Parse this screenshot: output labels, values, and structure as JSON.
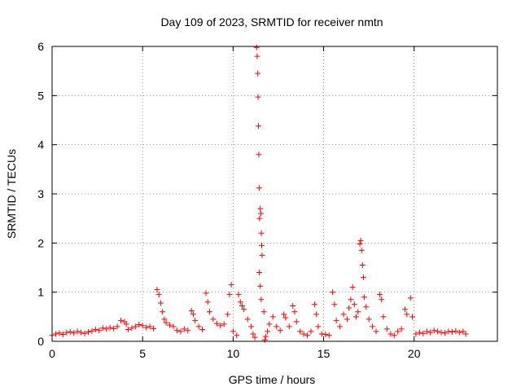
{
  "chart_data": {
    "type": "scatter",
    "title": "Day 109 of 2023, SRMTID for receiver nmtn",
    "xlabel": "GPS time / hours",
    "ylabel": "SRMTID / TECUs",
    "xlim": [
      0,
      24.6
    ],
    "ylim": [
      0,
      6
    ],
    "xticks": [
      0,
      5,
      10,
      15,
      20
    ],
    "yticks": [
      0,
      1,
      2,
      3,
      4,
      5,
      6
    ],
    "grid": true,
    "marker": "+",
    "colors": {
      "points": "#ff0000",
      "axes": "#000000",
      "grid": "#a0a0a0"
    },
    "series": [
      {
        "name": "nmtn",
        "points": [
          [
            0.0,
            0.12
          ],
          [
            0.2,
            0.15
          ],
          [
            0.4,
            0.17
          ],
          [
            0.6,
            0.14
          ],
          [
            0.8,
            0.18
          ],
          [
            1.0,
            0.19
          ],
          [
            1.2,
            0.17
          ],
          [
            1.4,
            0.2
          ],
          [
            1.6,
            0.18
          ],
          [
            1.8,
            0.16
          ],
          [
            2.0,
            0.19
          ],
          [
            2.2,
            0.21
          ],
          [
            2.4,
            0.24
          ],
          [
            2.6,
            0.22
          ],
          [
            2.8,
            0.27
          ],
          [
            3.0,
            0.25
          ],
          [
            3.2,
            0.28
          ],
          [
            3.4,
            0.26
          ],
          [
            3.6,
            0.3
          ],
          [
            3.8,
            0.42
          ],
          [
            4.0,
            0.4
          ],
          [
            4.1,
            0.35
          ],
          [
            4.2,
            0.24
          ],
          [
            4.4,
            0.27
          ],
          [
            4.6,
            0.3
          ],
          [
            4.8,
            0.34
          ],
          [
            5.0,
            0.32
          ],
          [
            5.2,
            0.28
          ],
          [
            5.4,
            0.3
          ],
          [
            5.6,
            0.26
          ],
          [
            5.8,
            1.05
          ],
          [
            5.9,
            0.95
          ],
          [
            6.0,
            0.78
          ],
          [
            6.1,
            0.6
          ],
          [
            6.2,
            0.45
          ],
          [
            6.3,
            0.38
          ],
          [
            6.5,
            0.33
          ],
          [
            6.7,
            0.3
          ],
          [
            6.9,
            0.22
          ],
          [
            7.1,
            0.2
          ],
          [
            7.3,
            0.25
          ],
          [
            7.5,
            0.22
          ],
          [
            7.7,
            0.62
          ],
          [
            7.8,
            0.55
          ],
          [
            7.9,
            0.42
          ],
          [
            8.1,
            0.3
          ],
          [
            8.3,
            0.24
          ],
          [
            8.5,
            0.98
          ],
          [
            8.6,
            0.8
          ],
          [
            8.7,
            0.6
          ],
          [
            8.9,
            0.45
          ],
          [
            9.1,
            0.36
          ],
          [
            9.3,
            0.32
          ],
          [
            9.5,
            0.35
          ],
          [
            9.7,
            0.55
          ],
          [
            9.8,
            0.95
          ],
          [
            9.9,
            1.15
          ],
          [
            10.0,
            0.2
          ],
          [
            10.2,
            0.12
          ],
          [
            10.3,
            0.95
          ],
          [
            10.4,
            0.8
          ],
          [
            10.5,
            0.72
          ],
          [
            10.6,
            0.65
          ],
          [
            10.8,
            0.45
          ],
          [
            11.0,
            0.3
          ],
          [
            11.1,
            0.15
          ],
          [
            11.2,
            0.08
          ],
          [
            11.3,
            5.98
          ],
          [
            11.33,
            5.8
          ],
          [
            11.36,
            5.45
          ],
          [
            11.38,
            4.97
          ],
          [
            11.4,
            4.38
          ],
          [
            11.42,
            3.8
          ],
          [
            11.44,
            3.12
          ],
          [
            11.46,
            2.5
          ],
          [
            11.5,
            2.7
          ],
          [
            11.53,
            2.6
          ],
          [
            11.56,
            2.2
          ],
          [
            11.58,
            1.95
          ],
          [
            11.6,
            1.75
          ],
          [
            11.45,
            1.4
          ],
          [
            11.5,
            1.12
          ],
          [
            11.55,
            0.85
          ],
          [
            11.7,
            0.6
          ],
          [
            11.8,
            0.1
          ],
          [
            11.75,
            0.03
          ],
          [
            11.9,
            0.2
          ],
          [
            12.0,
            0.35
          ],
          [
            12.2,
            0.5
          ],
          [
            12.4,
            0.3
          ],
          [
            12.6,
            0.22
          ],
          [
            12.8,
            0.55
          ],
          [
            12.9,
            0.48
          ],
          [
            13.1,
            0.3
          ],
          [
            13.3,
            0.72
          ],
          [
            13.4,
            0.6
          ],
          [
            13.5,
            0.4
          ],
          [
            13.7,
            0.2
          ],
          [
            13.9,
            0.15
          ],
          [
            14.1,
            0.12
          ],
          [
            14.3,
            0.2
          ],
          [
            14.5,
            0.75
          ],
          [
            14.6,
            0.55
          ],
          [
            14.7,
            0.3
          ],
          [
            14.9,
            0.15
          ],
          [
            15.1,
            0.14
          ],
          [
            15.3,
            0.12
          ],
          [
            15.5,
            1.0
          ],
          [
            15.6,
            0.75
          ],
          [
            15.7,
            0.42
          ],
          [
            15.9,
            0.3
          ],
          [
            16.1,
            0.55
          ],
          [
            16.3,
            0.45
          ],
          [
            16.4,
            0.68
          ],
          [
            16.5,
            0.85
          ],
          [
            16.6,
            1.1
          ],
          [
            16.7,
            0.75
          ],
          [
            16.8,
            0.5
          ],
          [
            16.9,
            0.6
          ],
          [
            17.0,
            1.98
          ],
          [
            17.05,
            2.05
          ],
          [
            17.1,
            1.85
          ],
          [
            17.15,
            1.55
          ],
          [
            17.2,
            1.3
          ],
          [
            17.25,
            0.9
          ],
          [
            17.35,
            0.7
          ],
          [
            17.5,
            0.45
          ],
          [
            17.7,
            0.3
          ],
          [
            17.9,
            0.2
          ],
          [
            18.1,
            0.95
          ],
          [
            18.2,
            0.85
          ],
          [
            18.3,
            0.5
          ],
          [
            18.5,
            0.25
          ],
          [
            18.7,
            0.15
          ],
          [
            18.9,
            0.12
          ],
          [
            19.1,
            0.2
          ],
          [
            19.3,
            0.25
          ],
          [
            19.5,
            0.65
          ],
          [
            19.6,
            0.55
          ],
          [
            19.8,
            0.88
          ],
          [
            19.9,
            0.5
          ],
          [
            20.1,
            0.15
          ],
          [
            20.3,
            0.18
          ],
          [
            20.5,
            0.16
          ],
          [
            20.7,
            0.2
          ],
          [
            20.9,
            0.18
          ],
          [
            21.1,
            0.22
          ],
          [
            21.3,
            0.2
          ],
          [
            21.5,
            0.18
          ],
          [
            21.7,
            0.17
          ],
          [
            21.9,
            0.2
          ],
          [
            22.1,
            0.19
          ],
          [
            22.3,
            0.21
          ],
          [
            22.5,
            0.18
          ],
          [
            22.7,
            0.2
          ],
          [
            22.85,
            0.15
          ]
        ]
      }
    ]
  }
}
